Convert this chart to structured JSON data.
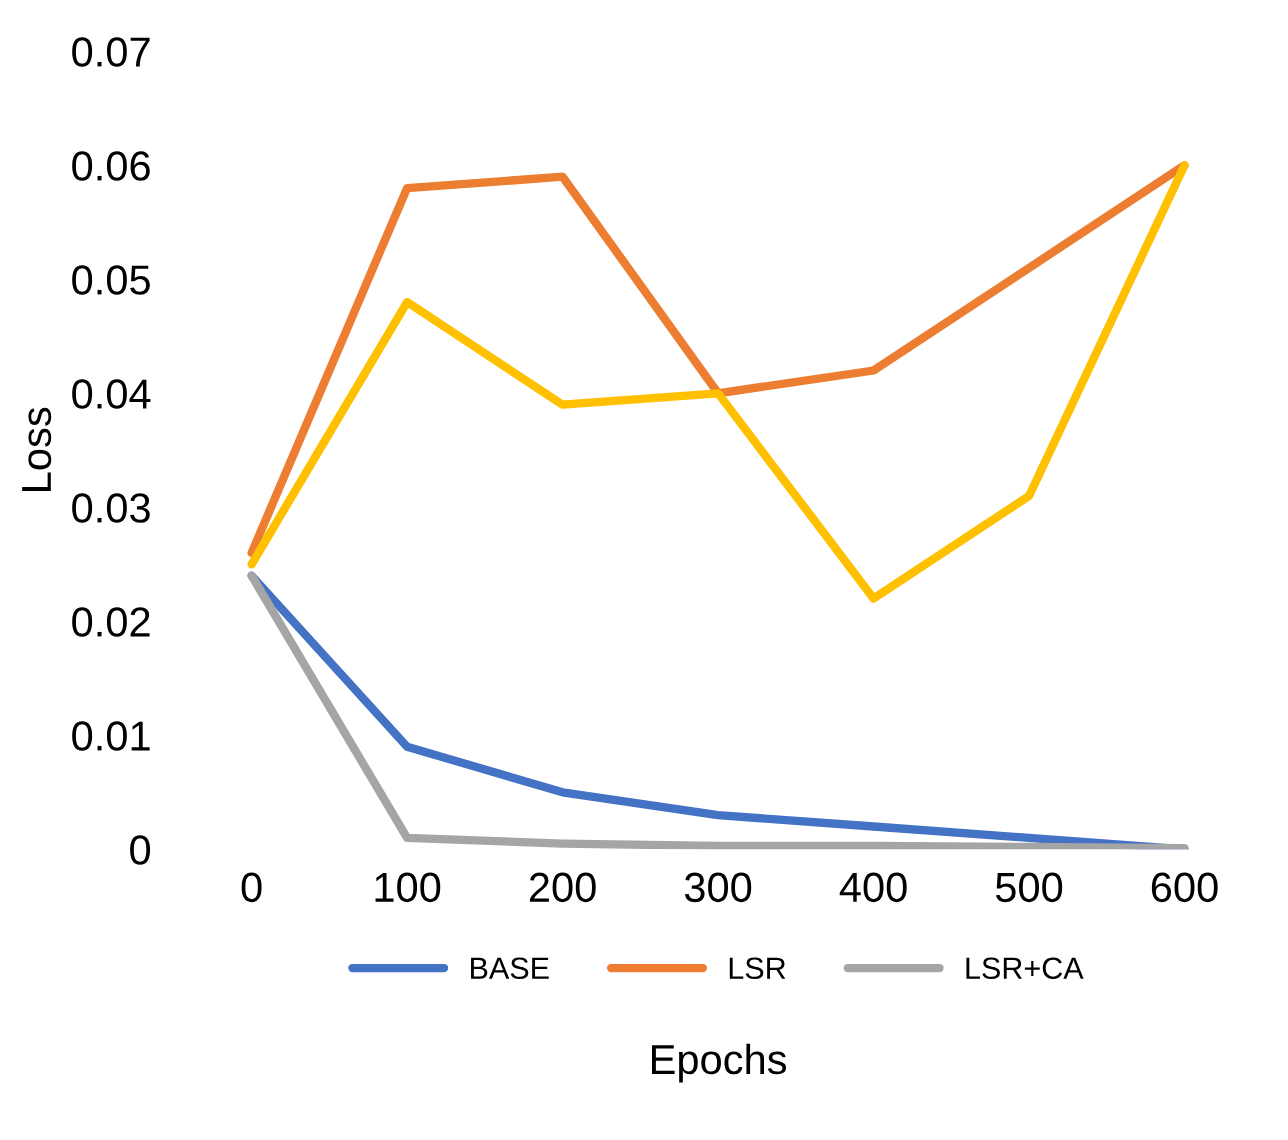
{
  "chart_data": {
    "type": "line",
    "xlabel": "Epochs",
    "ylabel": "Loss",
    "categories": [
      "0",
      "100",
      "200",
      "300",
      "400",
      "500",
      "600"
    ],
    "series": [
      {
        "name": "BASE",
        "color": "#4472c4",
        "values": [
          0.024,
          0.009,
          0.005,
          0.003,
          0.002,
          0.001,
          0.0
        ]
      },
      {
        "name": "LSR",
        "color": "#ed7d31",
        "values": [
          0.026,
          0.058,
          0.059,
          0.04,
          0.042,
          0.051,
          0.06
        ]
      },
      {
        "name": "LSR+CA",
        "color": "#a5a5a5",
        "values": [
          0.024,
          0.001,
          0.0005,
          0.0003,
          0.0003,
          0.0002,
          0.0001
        ]
      },
      {
        "color": "#ffc000",
        "values": [
          0.025,
          0.048,
          0.039,
          0.04,
          0.022,
          0.031,
          0.06
        ]
      }
    ],
    "ylim": [
      0,
      0.07
    ],
    "yticks": [
      0,
      0.01,
      0.02,
      0.03,
      0.04,
      0.05,
      0.06,
      0.07
    ],
    "grid": false,
    "legend": "bottom",
    "marker": "none",
    "line_style": "solid"
  }
}
